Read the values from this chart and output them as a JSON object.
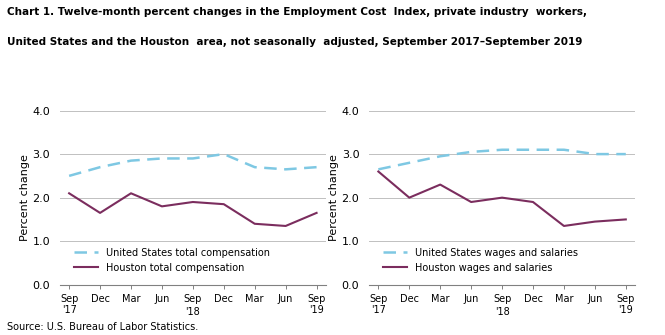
{
  "title_line1": "Chart 1. Twelve-month percent changes in the Employment Cost  Index, private industry  workers,",
  "title_line2": "United States and the Houston  area, not seasonally  adjusted, September 2017–September 2019",
  "ylabel": "Percent change",
  "source": "Source: U.S. Bureau of Labor Statistics.",
  "left_chart": {
    "us_total_comp": [
      2.5,
      2.7,
      2.85,
      2.9,
      2.9,
      3.0,
      2.7,
      2.65,
      2.7
    ],
    "houston_total_comp": [
      2.1,
      1.65,
      2.1,
      1.8,
      1.9,
      1.85,
      1.4,
      1.35,
      1.65
    ],
    "legend1": "United States total compensation",
    "legend2": "Houston total compensation"
  },
  "right_chart": {
    "us_wages_salaries": [
      2.65,
      2.8,
      2.95,
      3.05,
      3.1,
      3.1,
      3.1,
      3.0,
      3.0
    ],
    "houston_wages_salaries": [
      2.6,
      2.0,
      2.3,
      1.9,
      2.0,
      1.9,
      1.35,
      1.45,
      1.5
    ],
    "legend1": "United States wages and salaries",
    "legend2": "Houston wages and salaries"
  },
  "us_color": "#7ec8e3",
  "houston_color": "#7b2d5e",
  "ylim": [
    0.0,
    4.0
  ],
  "yticks": [
    0.0,
    1.0,
    2.0,
    3.0,
    4.0
  ],
  "grid_color": "#c0c0c0",
  "background_color": "#ffffff"
}
